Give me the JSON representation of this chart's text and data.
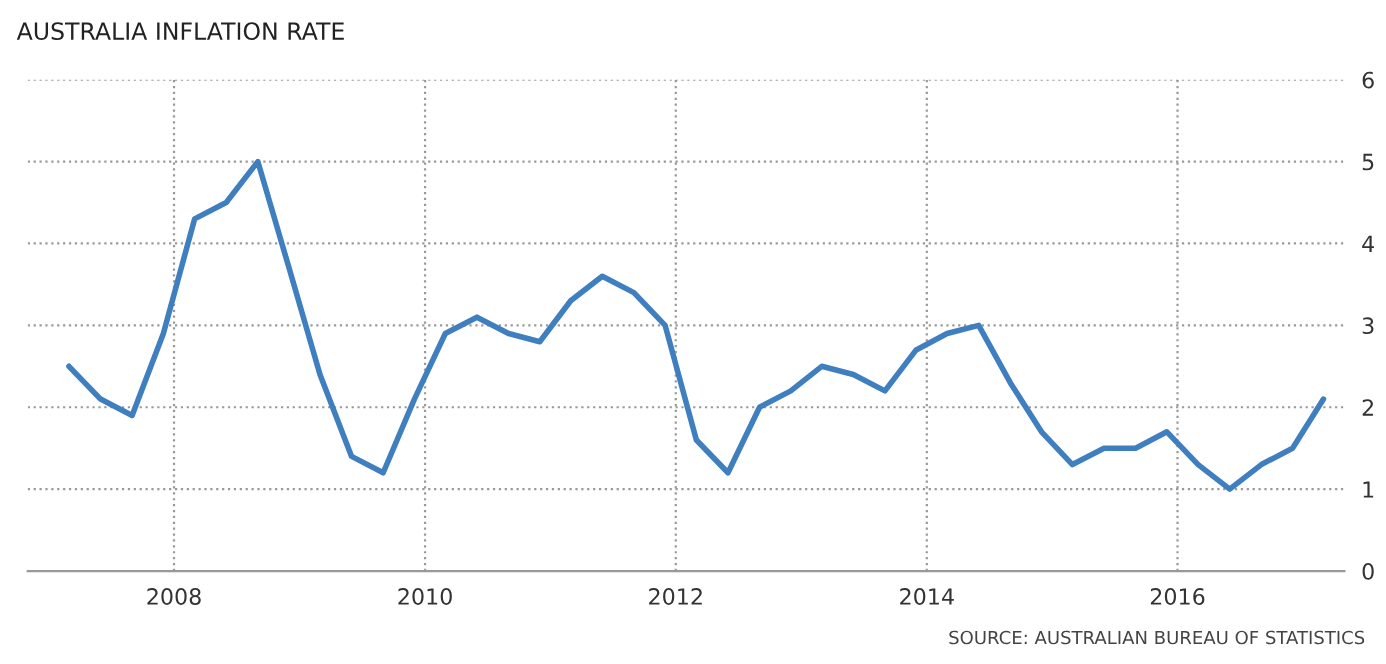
{
  "chart_data": {
    "type": "line",
    "title": "AUSTRALIA INFLATION RATE",
    "x": [
      "2007-03",
      "2007-06",
      "2007-09",
      "2007-12",
      "2008-03",
      "2008-06",
      "2008-09",
      "2008-12",
      "2009-03",
      "2009-06",
      "2009-09",
      "2009-12",
      "2010-03",
      "2010-06",
      "2010-09",
      "2010-12",
      "2011-03",
      "2011-06",
      "2011-09",
      "2011-12",
      "2012-03",
      "2012-06",
      "2012-09",
      "2012-12",
      "2013-03",
      "2013-06",
      "2013-09",
      "2013-12",
      "2014-03",
      "2014-06",
      "2014-09",
      "2014-12",
      "2015-03",
      "2015-06",
      "2015-09",
      "2015-12",
      "2016-03",
      "2016-06",
      "2016-09",
      "2016-12",
      "2017-03"
    ],
    "series": [
      {
        "color": "#3f7fbf",
        "values": [
          2.5,
          2.1,
          1.9,
          2.9,
          4.3,
          4.5,
          5.0,
          3.7,
          2.4,
          1.4,
          1.2,
          2.1,
          2.9,
          3.1,
          2.9,
          2.8,
          3.3,
          3.6,
          3.4,
          3.0,
          1.6,
          1.2,
          2.0,
          2.2,
          2.5,
          2.4,
          2.2,
          2.7,
          2.9,
          3.0,
          2.3,
          1.7,
          1.3,
          1.5,
          1.5,
          1.7,
          1.3,
          1.0,
          1.3,
          1.5,
          2.1
        ]
      }
    ],
    "xlim": [
      "2006-11",
      "2017-05"
    ],
    "xticks": [
      "2008",
      "2010",
      "2012",
      "2014",
      "2016"
    ],
    "ylim": [
      0,
      6
    ],
    "yticks": [
      0,
      1,
      2,
      3,
      4,
      5,
      6
    ],
    "grid": true,
    "line_style": "solid",
    "marker": "none",
    "annotations": [
      "SOURCE: AUSTRALIAN BUREAU OF STATISTICS"
    ]
  }
}
